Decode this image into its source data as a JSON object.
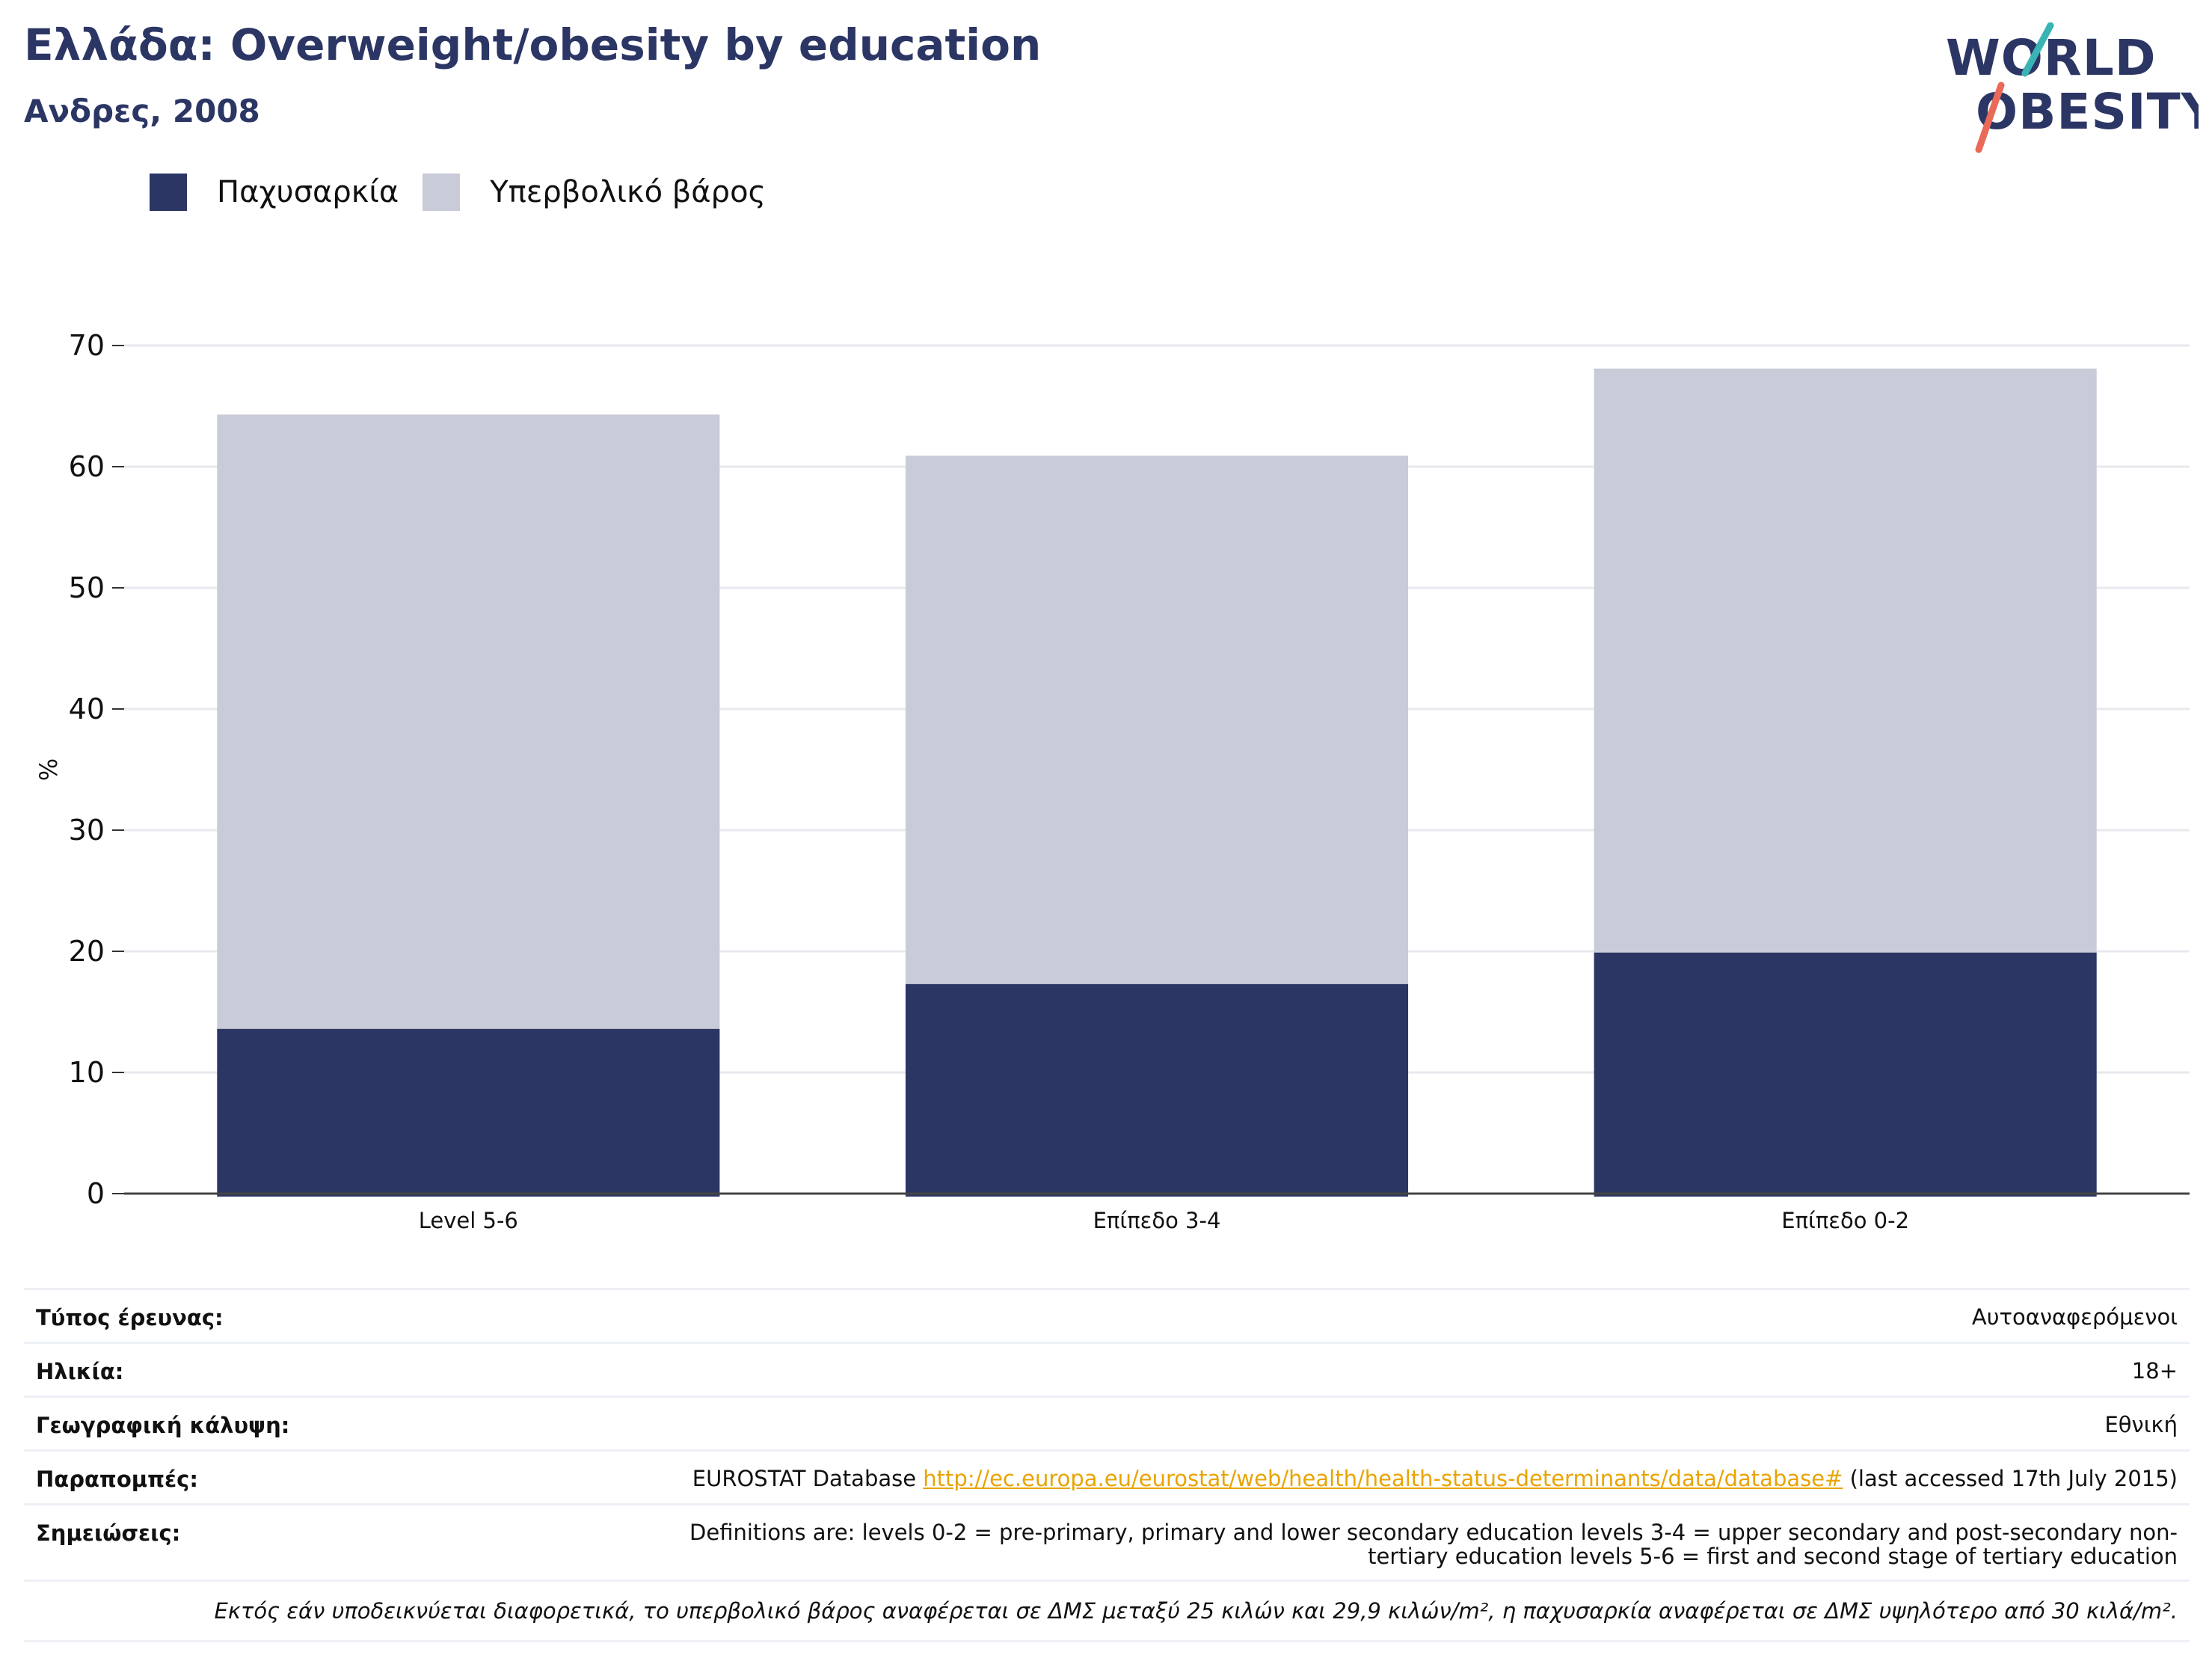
{
  "header": {
    "title": "Ελλάδα: Overweight/obesity by education",
    "subtitle": "Ανδρες, 2008"
  },
  "logo": {
    "line1": "WORLD",
    "line2": "OBESITY"
  },
  "legend": {
    "items": [
      {
        "label": "Παχυσαρκία",
        "color": "#2c3665"
      },
      {
        "label": "Υπερβολικό βάρος",
        "color": "#c9cbd8"
      }
    ]
  },
  "chart_data": {
    "type": "bar",
    "stacked": true,
    "categories": [
      "Level 5-6",
      "Επίπεδο 3-4",
      "Επίπεδο 0-2"
    ],
    "series": [
      {
        "name": "Παχυσαρκία",
        "color": "#2c3665",
        "values": [
          13.6,
          17.3,
          19.9
        ]
      },
      {
        "name": "Υπερβολικό βάρος",
        "color": "#c9cbd8",
        "values": [
          50.7,
          43.6,
          48.2
        ]
      }
    ],
    "ylabel": "%",
    "ylim": [
      0,
      70
    ],
    "yticks": [
      0,
      10,
      20,
      30,
      40,
      50,
      60,
      70
    ],
    "grid": true,
    "legend_position": "top-left"
  },
  "info": {
    "rows": [
      {
        "key": "Τύπος έρευνας:",
        "value": "Αυτοαναφερόμενοι"
      },
      {
        "key": "Ηλικία:",
        "value": "18+"
      },
      {
        "key": "Γεωγραφική κάλυψη:",
        "value": "Εθνική"
      },
      {
        "key": "Παραπομπές:",
        "value_prefix": "EUROSTAT Database ",
        "link": "http://ec.europa.eu/eurostat/web/health/health-status-determinants/data/database#",
        "value_suffix": " (last accessed 17th July 2015)"
      },
      {
        "key": "Σημειώσεις:",
        "value": "Definitions are: levels 0-2 = pre-primary, primary and lower secondary education levels 3-4 = upper secondary and post-secondary non-tertiary education levels 5-6 = first and second stage of tertiary education"
      }
    ],
    "footnote": "Εκτός εάν υποδεικνύεται διαφορετικά, το υπερβολικό βάρος αναφέρεται σε ΔΜΣ μεταξύ 25 κιλών και 29,9 κιλών/m², η παχυσαρκία αναφέρεται σε ΔΜΣ υψηλότερο από 30 κιλά/m²."
  }
}
